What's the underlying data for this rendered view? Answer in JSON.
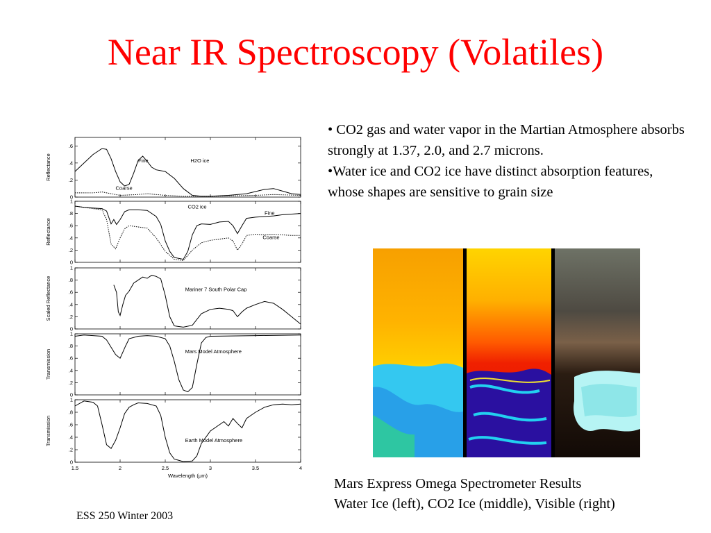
{
  "title": "Near IR Spectroscopy (Volatiles)",
  "bullets": [
    "• CO2 gas and water vapor in the Martian Atmosphere absorbs strongly at 1.37, 2.0, and 2.7 microns.",
    "•Water ice and CO2 ice have distinct absorption features, whose shapes are sensitive to grain size"
  ],
  "caption": {
    "line1": "Mars Express Omega Spectrometer Results",
    "line2": "Water Ice (left), CO2 Ice (middle), Visible (right)"
  },
  "footer": "ESS 250 Winter 2003",
  "chart_data": {
    "type": "line",
    "xlabel": "Wavelength (μm)",
    "xlim": [
      1.5,
      4.0
    ],
    "xticks": [
      "1.5",
      "2",
      "2.5",
      "3",
      "3.5",
      "4"
    ],
    "panels": [
      {
        "ylabel": "Reflectance",
        "ylim": [
          0,
          0.7
        ],
        "yticks": [
          "0",
          ".2",
          ".4",
          ".6"
        ],
        "annotations": [
          "Fine",
          "H2O ice",
          "Coarse"
        ],
        "series": [
          {
            "name": "Fine",
            "style": "solid",
            "points": [
              [
                1.5,
                0.3
              ],
              [
                1.6,
                0.4
              ],
              [
                1.7,
                0.5
              ],
              [
                1.8,
                0.57
              ],
              [
                1.85,
                0.56
              ],
              [
                1.9,
                0.45
              ],
              [
                1.95,
                0.3
              ],
              [
                2.0,
                0.18
              ],
              [
                2.05,
                0.13
              ],
              [
                2.1,
                0.15
              ],
              [
                2.15,
                0.28
              ],
              [
                2.2,
                0.43
              ],
              [
                2.25,
                0.48
              ],
              [
                2.3,
                0.42
              ],
              [
                2.35,
                0.35
              ],
              [
                2.4,
                0.32
              ],
              [
                2.5,
                0.3
              ],
              [
                2.6,
                0.22
              ],
              [
                2.7,
                0.1
              ],
              [
                2.8,
                0.02
              ],
              [
                2.9,
                0.01
              ],
              [
                3.0,
                0.01
              ],
              [
                3.2,
                0.02
              ],
              [
                3.4,
                0.04
              ],
              [
                3.6,
                0.09
              ],
              [
                3.7,
                0.1
              ],
              [
                3.8,
                0.07
              ],
              [
                3.9,
                0.04
              ],
              [
                4.0,
                0.03
              ]
            ]
          },
          {
            "name": "Coarse",
            "style": "dotted",
            "points": [
              [
                1.5,
                0.05
              ],
              [
                1.7,
                0.05
              ],
              [
                1.8,
                0.06
              ],
              [
                1.9,
                0.04
              ],
              [
                2.0,
                0.02
              ],
              [
                2.2,
                0.03
              ],
              [
                2.3,
                0.04
              ],
              [
                2.5,
                0.02
              ],
              [
                2.7,
                0.01
              ],
              [
                3.0,
                0.01
              ],
              [
                3.5,
                0.02
              ],
              [
                3.7,
                0.03
              ],
              [
                4.0,
                0.02
              ]
            ]
          }
        ]
      },
      {
        "ylabel": "Reflectance",
        "ylim": [
          0,
          1.0
        ],
        "yticks": [
          "0",
          ".2",
          ".4",
          ".6",
          ".8",
          "1"
        ],
        "annotations": [
          "CO2 ice",
          "Fine",
          "Coarse"
        ],
        "series": [
          {
            "name": "Fine",
            "style": "solid",
            "points": [
              [
                1.5,
                0.92
              ],
              [
                1.6,
                0.9
              ],
              [
                1.7,
                0.89
              ],
              [
                1.8,
                0.88
              ],
              [
                1.85,
                0.84
              ],
              [
                1.9,
                0.63
              ],
              [
                1.93,
                0.7
              ],
              [
                1.96,
                0.62
              ],
              [
                2.0,
                0.7
              ],
              [
                2.05,
                0.83
              ],
              [
                2.1,
                0.86
              ],
              [
                2.2,
                0.86
              ],
              [
                2.3,
                0.85
              ],
              [
                2.4,
                0.75
              ],
              [
                2.45,
                0.62
              ],
              [
                2.5,
                0.35
              ],
              [
                2.55,
                0.18
              ],
              [
                2.6,
                0.08
              ],
              [
                2.7,
                0.05
              ],
              [
                2.75,
                0.18
              ],
              [
                2.8,
                0.45
              ],
              [
                2.85,
                0.6
              ],
              [
                2.9,
                0.63
              ],
              [
                3.0,
                0.62
              ],
              [
                3.1,
                0.66
              ],
              [
                3.2,
                0.67
              ],
              [
                3.25,
                0.6
              ],
              [
                3.3,
                0.47
              ],
              [
                3.35,
                0.6
              ],
              [
                3.4,
                0.72
              ],
              [
                3.5,
                0.74
              ],
              [
                3.6,
                0.75
              ],
              [
                3.7,
                0.76
              ],
              [
                3.8,
                0.78
              ],
              [
                4.0,
                0.8
              ]
            ]
          },
          {
            "name": "Coarse",
            "style": "dotted",
            "points": [
              [
                1.5,
                0.92
              ],
              [
                1.7,
                0.88
              ],
              [
                1.8,
                0.86
              ],
              [
                1.85,
                0.7
              ],
              [
                1.9,
                0.3
              ],
              [
                1.95,
                0.22
              ],
              [
                2.0,
                0.4
              ],
              [
                2.05,
                0.55
              ],
              [
                2.1,
                0.6
              ],
              [
                2.2,
                0.58
              ],
              [
                2.3,
                0.56
              ],
              [
                2.4,
                0.4
              ],
              [
                2.5,
                0.18
              ],
              [
                2.6,
                0.05
              ],
              [
                2.7,
                0.03
              ],
              [
                2.8,
                0.2
              ],
              [
                2.9,
                0.32
              ],
              [
                3.0,
                0.36
              ],
              [
                3.1,
                0.38
              ],
              [
                3.2,
                0.4
              ],
              [
                3.25,
                0.35
              ],
              [
                3.3,
                0.2
              ],
              [
                3.35,
                0.3
              ],
              [
                3.4,
                0.44
              ],
              [
                3.5,
                0.46
              ],
              [
                3.6,
                0.45
              ],
              [
                3.7,
                0.46
              ],
              [
                3.8,
                0.45
              ],
              [
                3.9,
                0.44
              ],
              [
                4.0,
                0.44
              ]
            ]
          }
        ]
      },
      {
        "ylabel": "Scaled Reflectance",
        "ylim": [
          0,
          1.0
        ],
        "yticks": [
          "0",
          ".2",
          ".4",
          ".6",
          ".8",
          "1"
        ],
        "annotations": [
          "Mariner 7 South Polar Cap"
        ],
        "series": [
          {
            "name": "Mariner 7 South Polar Cap",
            "style": "solid",
            "points": [
              [
                1.93,
                0.72
              ],
              [
                1.96,
                0.6
              ],
              [
                1.98,
                0.28
              ],
              [
                2.0,
                0.22
              ],
              [
                2.03,
                0.4
              ],
              [
                2.06,
                0.55
              ],
              [
                2.1,
                0.62
              ],
              [
                2.15,
                0.75
              ],
              [
                2.2,
                0.8
              ],
              [
                2.25,
                0.85
              ],
              [
                2.3,
                0.83
              ],
              [
                2.35,
                0.88
              ],
              [
                2.4,
                0.86
              ],
              [
                2.45,
                0.82
              ],
              [
                2.5,
                0.55
              ],
              [
                2.55,
                0.2
              ],
              [
                2.6,
                0.05
              ],
              [
                2.7,
                0.03
              ],
              [
                2.8,
                0.06
              ],
              [
                2.9,
                0.25
              ],
              [
                3.0,
                0.32
              ],
              [
                3.1,
                0.34
              ],
              [
                3.2,
                0.32
              ],
              [
                3.25,
                0.3
              ],
              [
                3.3,
                0.2
              ],
              [
                3.35,
                0.28
              ],
              [
                3.4,
                0.34
              ],
              [
                3.5,
                0.4
              ],
              [
                3.6,
                0.45
              ],
              [
                3.7,
                0.42
              ],
              [
                3.8,
                0.32
              ],
              [
                3.9,
                0.2
              ],
              [
                4.0,
                0.08
              ]
            ]
          }
        ]
      },
      {
        "ylabel": "Transmission",
        "ylim": [
          0,
          1.0
        ],
        "yticks": [
          "0",
          ".2",
          ".4",
          ".6",
          ".8",
          "1"
        ],
        "annotations": [
          "Mars Model Atmosphere"
        ],
        "series": [
          {
            "name": "Mars Model Atmosphere",
            "style": "solid",
            "points": [
              [
                1.5,
                0.96
              ],
              [
                1.6,
                0.98
              ],
              [
                1.7,
                0.97
              ],
              [
                1.8,
                0.96
              ],
              [
                1.85,
                0.9
              ],
              [
                1.9,
                0.78
              ],
              [
                1.95,
                0.66
              ],
              [
                2.0,
                0.6
              ],
              [
                2.03,
                0.7
              ],
              [
                2.06,
                0.8
              ],
              [
                2.1,
                0.92
              ],
              [
                2.2,
                0.96
              ],
              [
                2.3,
                0.97
              ],
              [
                2.4,
                0.96
              ],
              [
                2.5,
                0.92
              ],
              [
                2.55,
                0.8
              ],
              [
                2.6,
                0.55
              ],
              [
                2.65,
                0.25
              ],
              [
                2.7,
                0.08
              ],
              [
                2.75,
                0.05
              ],
              [
                2.8,
                0.12
              ],
              [
                2.85,
                0.5
              ],
              [
                2.9,
                0.85
              ],
              [
                2.95,
                0.94
              ],
              [
                3.0,
                0.96
              ],
              [
                3.5,
                0.97
              ],
              [
                4.0,
                0.98
              ]
            ]
          }
        ]
      },
      {
        "ylabel": "Transmission",
        "ylim": [
          0,
          1.0
        ],
        "yticks": [
          "0",
          ".2",
          ".4",
          ".6",
          ".8",
          "1"
        ],
        "annotations": [
          "Earth Model Atmosphere"
        ],
        "series": [
          {
            "name": "Earth Model Atmosphere",
            "style": "solid",
            "points": [
              [
                1.5,
                0.9
              ],
              [
                1.6,
                0.98
              ],
              [
                1.7,
                0.96
              ],
              [
                1.75,
                0.9
              ],
              [
                1.8,
                0.6
              ],
              [
                1.85,
                0.28
              ],
              [
                1.9,
                0.22
              ],
              [
                1.95,
                0.35
              ],
              [
                2.0,
                0.55
              ],
              [
                2.05,
                0.78
              ],
              [
                2.1,
                0.88
              ],
              [
                2.15,
                0.92
              ],
              [
                2.2,
                0.95
              ],
              [
                2.3,
                0.94
              ],
              [
                2.4,
                0.9
              ],
              [
                2.45,
                0.75
              ],
              [
                2.5,
                0.4
              ],
              [
                2.55,
                0.15
              ],
              [
                2.6,
                0.05
              ],
              [
                2.7,
                0.01
              ],
              [
                2.8,
                0.02
              ],
              [
                2.85,
                0.1
              ],
              [
                2.9,
                0.3
              ],
              [
                3.0,
                0.5
              ],
              [
                3.1,
                0.6
              ],
              [
                3.15,
                0.65
              ],
              [
                3.2,
                0.58
              ],
              [
                3.25,
                0.7
              ],
              [
                3.3,
                0.62
              ],
              [
                3.35,
                0.55
              ],
              [
                3.4,
                0.7
              ],
              [
                3.5,
                0.8
              ],
              [
                3.6,
                0.88
              ],
              [
                3.7,
                0.92
              ],
              [
                3.8,
                0.93
              ],
              [
                3.9,
                0.92
              ],
              [
                4.0,
                0.93
              ]
            ]
          }
        ]
      }
    ]
  }
}
